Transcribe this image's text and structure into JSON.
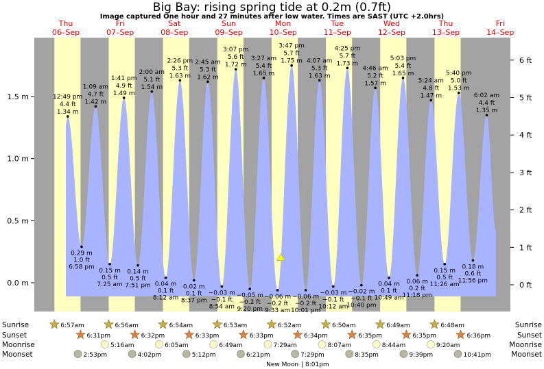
{
  "title": "Big Bay: rising  spring tide at 0.2m (0.7ft)",
  "subtitle": "Image captured One hour and 27 minutes after low water. Times are SAST (UTC +2.0hrs)",
  "colors": {
    "night": "#a3a3a3",
    "day": "#ffffc0",
    "tide": "#a8b4ff",
    "day_label": "#e00000",
    "sun_marker": "#c8b040",
    "sunset_marker": "#e08040",
    "moonrise_marker": "#ffffc8",
    "moonset_marker": "#b8b8a0",
    "current_marker": "#ffff00"
  },
  "chart_data": {
    "type": "area",
    "x_unit": "day",
    "x_range": [
      -0.55,
      8.2
    ],
    "ylim_m": [
      -0.22,
      1.9
    ],
    "ylim_ft": [
      -0.72,
      6.23
    ],
    "y_ticks_m": [
      "1.5 m",
      "1.0 m",
      "0.5 m",
      "0.0 m"
    ],
    "y_tick_values_m": [
      1.5,
      1.0,
      0.5,
      0.0
    ],
    "y_ticks_ft": [
      "6 ft",
      "5 ft",
      "4 ft",
      "3 ft",
      "2 ft",
      "1 ft",
      "0 ft"
    ],
    "y_tick_values_ft": [
      6,
      5,
      4,
      3,
      2,
      1,
      0
    ],
    "days": [
      {
        "name": "Thu",
        "date": "06–Sep",
        "sunrise": "6:57am",
        "sunset": "6:31pm",
        "moonrise": "",
        "moonset": "2:53pm"
      },
      {
        "name": "Fri",
        "date": "07–Sep",
        "sunrise": "6:56am",
        "sunset": "6:32pm",
        "moonrise": "5:16am",
        "moonset": "4:02pm"
      },
      {
        "name": "Sat",
        "date": "08–Sep",
        "sunrise": "6:54am",
        "sunset": "6:33pm",
        "moonrise": "6:05am",
        "moonset": "5:12pm"
      },
      {
        "name": "Sun",
        "date": "09–Sep",
        "sunrise": "6:53am",
        "sunset": "6:33pm",
        "moonrise": "6:49am",
        "moonset": "6:21pm"
      },
      {
        "name": "Mon",
        "date": "10–Sep",
        "sunrise": "6:52am",
        "sunset": "6:34pm",
        "moonrise": "7:29am",
        "moonset": "7:29pm"
      },
      {
        "name": "Tue",
        "date": "11–Sep",
        "sunrise": "6:50am",
        "sunset": "6:35pm",
        "moonrise": "8:07am",
        "moonset": "8:35pm"
      },
      {
        "name": "Wed",
        "date": "12–Sep",
        "sunrise": "6:49am",
        "sunset": "6:35pm",
        "moonrise": "8:44am",
        "moonset": "9:39pm"
      },
      {
        "name": "Thu",
        "date": "13–Sep",
        "sunrise": "6:48am",
        "sunset": "6:36pm",
        "moonrise": "9:20am",
        "moonset": "10:41pm"
      },
      {
        "name": "Fri",
        "date": "14–Sep",
        "sunrise": "",
        "sunset": "",
        "moonrise": "",
        "moonset": ""
      }
    ],
    "tides": [
      {
        "x": 0.034,
        "time": "12:49 pm",
        "ft": "4.4 ft",
        "m": 1.34,
        "label": "1.34 m",
        "type": "high"
      },
      {
        "x": 0.29,
        "time": "6:58 pm",
        "ft": "1.0 ft",
        "m": 0.29,
        "label": "0.29 m",
        "type": "low"
      },
      {
        "x": 0.548,
        "time": "1:09 am",
        "ft": "4.7 ft",
        "m": 1.42,
        "label": "1.42 m",
        "type": "high"
      },
      {
        "x": 0.809,
        "time": "7:25 am",
        "ft": "0.5 ft",
        "m": 0.15,
        "label": "0.15 m",
        "type": "low"
      },
      {
        "x": 1.07,
        "time": "1:41 pm",
        "ft": "4.9 ft",
        "m": 1.49,
        "label": "1.49 m",
        "type": "high"
      },
      {
        "x": 1.327,
        "time": "7:51 pm",
        "ft": "0.5 ft",
        "m": 0.14,
        "label": "0.14 m",
        "type": "low"
      },
      {
        "x": 1.583,
        "time": "2:00 am",
        "ft": "5.1 ft",
        "m": 1.54,
        "label": "1.54 m",
        "type": "high"
      },
      {
        "x": 1.839,
        "time": "8:12 am",
        "ft": "0.1 ft",
        "m": 0.04,
        "label": "0.04 m",
        "type": "low"
      },
      {
        "x": 2.102,
        "time": "2:26 pm",
        "ft": "5.3 ft",
        "m": 1.63,
        "label": "1.63 m",
        "type": "high"
      },
      {
        "x": 2.359,
        "time": "8:37 pm",
        "ft": "0.1 ft",
        "m": 0.02,
        "label": "0.02 m",
        "type": "low"
      },
      {
        "x": 2.615,
        "time": "2:45 am",
        "ft": "5.3 ft",
        "m": 1.62,
        "label": "1.62 m",
        "type": "high"
      },
      {
        "x": 2.872,
        "time": "8:54 am",
        "ft": "−0.1 ft",
        "m": -0.03,
        "label": "−0.03 m",
        "type": "low"
      },
      {
        "x": 3.13,
        "time": "3:07 pm",
        "ft": "5.6 ft",
        "m": 1.72,
        "label": "1.72 m",
        "type": "high"
      },
      {
        "x": 3.389,
        "time": "9:20 pm",
        "ft": "−0.2 ft",
        "m": -0.05,
        "label": "−0.05 m",
        "type": "low"
      },
      {
        "x": 3.644,
        "time": "3:27 am",
        "ft": "5.4 ft",
        "m": 1.65,
        "label": "1.65 m",
        "type": "high"
      },
      {
        "x": 3.898,
        "time": "9:33 am",
        "ft": "−0.2 ft",
        "m": -0.06,
        "label": "−0.06 m",
        "type": "low"
      },
      {
        "x": 4.158,
        "time": "3:47 pm",
        "ft": "5.7 ft",
        "m": 1.75,
        "label": "1.75 m",
        "type": "high"
      },
      {
        "x": 4.417,
        "time": "10:01 pm",
        "ft": "−0.2 ft",
        "m": -0.06,
        "label": "−0.06 m",
        "type": "low"
      },
      {
        "x": 4.671,
        "time": "4:07 am",
        "ft": "5.3 ft",
        "m": 1.63,
        "label": "1.63 m",
        "type": "high"
      },
      {
        "x": 4.925,
        "time": "10:12 am",
        "ft": "−0.1 ft",
        "m": -0.03,
        "label": "−0.03 m",
        "type": "low"
      },
      {
        "x": 5.184,
        "time": "4:25 pm",
        "ft": "5.7 ft",
        "m": 1.73,
        "label": "1.73 m",
        "type": "high"
      },
      {
        "x": 5.444,
        "time": "10:40 pm",
        "ft": "−0.1 ft",
        "m": -0.02,
        "label": "−0.02 m",
        "type": "low"
      },
      {
        "x": 5.699,
        "time": "4:46 am",
        "ft": "5.2 ft",
        "m": 1.57,
        "label": "1.57 m",
        "type": "high"
      },
      {
        "x": 5.951,
        "time": "10:49 am",
        "ft": "0.1 ft",
        "m": 0.04,
        "label": "0.04 m",
        "type": "low"
      },
      {
        "x": 6.21,
        "time": "5:03 pm",
        "ft": "5.4 ft",
        "m": 1.65,
        "label": "1.65 m",
        "type": "high"
      },
      {
        "x": 6.471,
        "time": "11:18 pm",
        "ft": "0.2 ft",
        "m": 0.06,
        "label": "0.06 m",
        "type": "low"
      },
      {
        "x": 6.725,
        "time": "5:24 am",
        "ft": "4.8 ft",
        "m": 1.47,
        "label": "1.47 m",
        "type": "high"
      },
      {
        "x": 6.976,
        "time": "11:26 am",
        "ft": "0.5 ft",
        "m": 0.15,
        "label": "0.15 m",
        "type": "low"
      },
      {
        "x": 7.236,
        "time": "5:40 pm",
        "ft": "5.0 ft",
        "m": 1.53,
        "label": "1.53 m",
        "type": "high"
      },
      {
        "x": 7.497,
        "time": "11:56 pm",
        "ft": "0.6 ft",
        "m": 0.18,
        "label": "0.18 m",
        "type": "low"
      },
      {
        "x": 7.751,
        "time": "6:02 am",
        "ft": "4.4 ft",
        "m": 1.35,
        "label": "1.35 m",
        "type": "high"
      }
    ],
    "curve_start": {
      "x": 0.0,
      "m": 1.28
    },
    "curve_end": {
      "x": 7.92,
      "m": 0.42
    },
    "current": {
      "x": 3.96,
      "m": 0.2
    },
    "sun": {
      "sunrise_x": 0.289,
      "sunset_x": 0.771
    },
    "moon_phase": {
      "label": "New Moon",
      "time": "8:01pm",
      "x": 4.335
    }
  },
  "row_labels": {
    "sunrise": "Sunrise",
    "sunset": "Sunset",
    "moonrise": "Moonrise",
    "moonset": "Moonset"
  }
}
